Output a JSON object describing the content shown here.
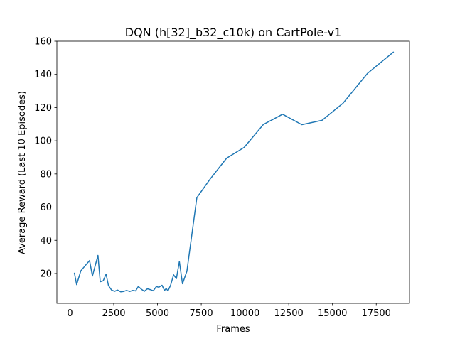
{
  "chart_data": {
    "type": "line",
    "title": "DQN (h[32]_b32_c10k) on CartPole-v1",
    "xlabel": "Frames",
    "ylabel": "Average Reward (Last 10 Episodes)",
    "xlim": [
      -750,
      19400
    ],
    "ylim": [
      2,
      160
    ],
    "xticks": [
      0,
      2500,
      5000,
      7500,
      10000,
      12500,
      15000,
      17500
    ],
    "xtick_labels": [
      "0",
      "2500",
      "5000",
      "7500",
      "10000",
      "12500",
      "15000",
      "17500"
    ],
    "yticks": [
      20,
      40,
      60,
      80,
      100,
      120,
      140,
      160
    ],
    "ytick_labels": [
      "20",
      "40",
      "60",
      "80",
      "100",
      "120",
      "140",
      "160"
    ],
    "grid": false,
    "series": [
      {
        "color": "#1f77b4",
        "x": [
          250,
          380,
          620,
          1120,
          1280,
          1600,
          1730,
          1900,
          2060,
          2200,
          2380,
          2550,
          2720,
          2900,
          3060,
          3230,
          3420,
          3580,
          3750,
          3900,
          4080,
          4250,
          4420,
          4580,
          4760,
          4930,
          5080,
          5260,
          5400,
          5500,
          5600,
          5750,
          5920,
          6080,
          6250,
          6430,
          6680,
          7250,
          8000,
          8950,
          9950,
          11050,
          12150,
          13250,
          14400,
          15600,
          17000,
          18500
        ],
        "y": [
          20.5,
          13.3,
          21.6,
          27.8,
          18.5,
          30.9,
          15.0,
          15.6,
          19.6,
          12.7,
          10.0,
          9.3,
          10.0,
          9.0,
          9.2,
          9.8,
          9.2,
          9.8,
          9.5,
          12.2,
          10.5,
          9.3,
          10.8,
          10.3,
          9.6,
          12.1,
          11.7,
          12.9,
          9.8,
          11.0,
          9.5,
          13.0,
          19.2,
          16.9,
          27.2,
          13.8,
          21.4,
          65.7,
          76.8,
          89.5,
          96.0,
          109.8,
          116.0,
          109.7,
          112.3,
          122.6,
          140.6,
          153.6
        ]
      }
    ]
  }
}
